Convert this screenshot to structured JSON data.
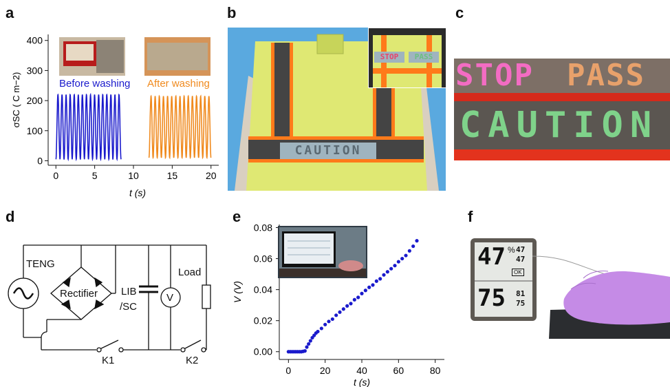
{
  "panel_labels": {
    "a": "a",
    "b": "b",
    "c": "c",
    "d": "d",
    "e": "e",
    "f": "f"
  },
  "panel_a": {
    "chart_data": {
      "type": "line",
      "xlabel": "t (s)",
      "ylabel": "σSC ( C m−2)",
      "xlim": [
        -1,
        21
      ],
      "ylim": [
        -15,
        420
      ],
      "xticks": [
        0,
        5,
        10,
        15,
        20
      ],
      "yticks": [
        0,
        100,
        200,
        300,
        400
      ],
      "annotations": [
        "Before washing",
        "After washing"
      ],
      "series": [
        {
          "name": "Before washing",
          "color": "#1a1acc",
          "t_start": 0.0,
          "t_end": 8.4,
          "cycles": 16,
          "min": 5,
          "max": 220
        },
        {
          "name": "After washing",
          "color": "#f08a1e",
          "t_start": 12.0,
          "t_end": 20.0,
          "cycles": 15,
          "min": 10,
          "max": 215
        }
      ]
    }
  },
  "panel_b": {
    "sign_text": "CAUTION",
    "inset_sign_left": "STOP",
    "inset_sign_right": "PASS"
  },
  "panel_c": {
    "top_left": "STOP",
    "top_right": "PASS",
    "bottom": "CAUTION"
  },
  "panel_d": {
    "labels": {
      "teng": "TENG",
      "rectifier": "Rectifier",
      "lib_line1": "LIB",
      "lib_line2": "/SC",
      "voltmeter": "V",
      "load": "Load",
      "k1": "K1",
      "k2": "K2"
    }
  },
  "panel_e": {
    "chart_data": {
      "type": "scatter",
      "xlabel": "t (s)",
      "ylabel": "V (V)",
      "xlim": [
        -5,
        85
      ],
      "ylim": [
        -0.005,
        0.082
      ],
      "xticks": [
        0,
        20,
        40,
        60,
        80
      ],
      "yticks": [
        0.0,
        0.02,
        0.04,
        0.06,
        0.08
      ],
      "ytick_labels": [
        "0.00",
        "0.02",
        "0.04",
        "0.06",
        "0.08"
      ],
      "color": "#1a1acc",
      "x": [
        0,
        1,
        2,
        3,
        4,
        5,
        6,
        7,
        8,
        9,
        10,
        11,
        12,
        13,
        14,
        15,
        16,
        18,
        20,
        22,
        24,
        26,
        28,
        30,
        32,
        34,
        36,
        38,
        40,
        42,
        44,
        46,
        48,
        50,
        52,
        54,
        56,
        58,
        60,
        62,
        64,
        66,
        68,
        70
      ],
      "y": [
        0.0,
        0.0,
        0.0,
        0.0,
        0.0,
        0.0,
        0.0,
        0.0,
        0.0002,
        0.0005,
        0.003,
        0.005,
        0.007,
        0.009,
        0.0105,
        0.012,
        0.013,
        0.015,
        0.0175,
        0.0195,
        0.021,
        0.0235,
        0.0255,
        0.0275,
        0.0295,
        0.031,
        0.0335,
        0.035,
        0.0375,
        0.0395,
        0.0415,
        0.043,
        0.0455,
        0.047,
        0.0495,
        0.0515,
        0.0535,
        0.0555,
        0.058,
        0.06,
        0.062,
        0.065,
        0.068,
        0.0715
      ]
    }
  },
  "panel_f": {
    "display": {
      "big_top": "47",
      "pct": "%",
      "small_top1": "47",
      "small_top2": "47",
      "ok": "OK",
      "big_bottom": "75",
      "small_bot1": "81",
      "small_bot2": "75"
    }
  },
  "colors": {
    "blue": "#1a1acc",
    "orange": "#f08a1e",
    "vest": "#dfe873",
    "sky": "#5aa9df"
  }
}
